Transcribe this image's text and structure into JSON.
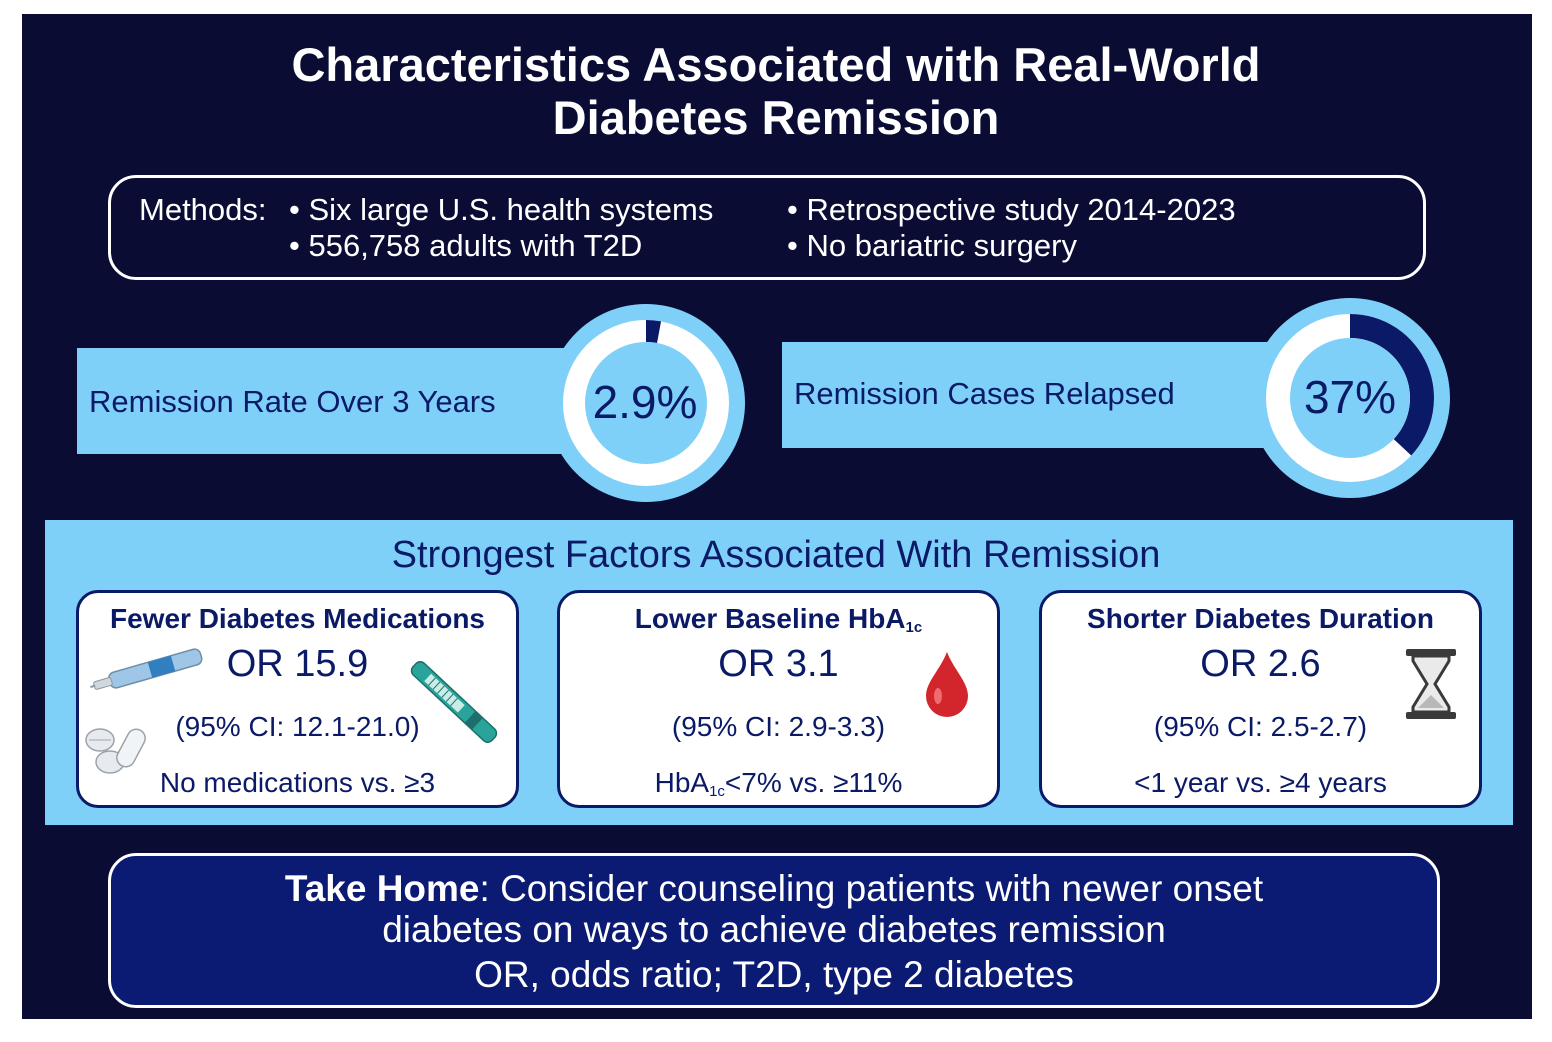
{
  "title": {
    "line1": "Characteristics Associated with Real-World",
    "line2": "Diabetes Remission"
  },
  "methods": {
    "label": "Methods:",
    "bullets": [
      "• Six large U.S. health systems",
      "• 556,758 adults with T2D",
      "• Retrospective study 2014-2023",
      "• No bariatric surgery"
    ]
  },
  "stats": [
    {
      "label": "Remission Rate Over 3 Years",
      "value": "2.9%",
      "fraction": 0.029
    },
    {
      "label": "Remission Cases Relapsed",
      "value": "37%",
      "fraction": 0.37
    }
  ],
  "factors": {
    "heading": "Strongest Factors Associated With Remission",
    "cards": [
      {
        "title": "Fewer Diabetes Medications",
        "or": "OR 15.9",
        "ci": "(95% CI: 12.1-21.0)",
        "comparison": "No medications vs. ≥3"
      },
      {
        "title_pre": "Lower Baseline HbA",
        "title_sub": "1c",
        "or": "OR 3.1",
        "ci": "(95% CI: 2.9-3.3)",
        "comparison_pre": "HbA",
        "comparison_sub": "1c",
        "comparison_post": "<7% vs. ≥11%"
      },
      {
        "title": "Shorter Diabetes Duration",
        "or": "OR 2.6",
        "ci": "(95% CI: 2.5-2.7)",
        "comparison": "<1 year vs. ≥4 years"
      }
    ]
  },
  "takehome": {
    "bold": "Take Home",
    "line1_rest": ": Consider counseling patients with newer onset",
    "line2": "diabetes on ways to achieve diabetes remission",
    "line3": "OR, odds ratio; T2D, type 2 diabetes"
  },
  "icons": [
    "insulin-pen-icon",
    "pills-icon",
    "teal-insulin-pen-icon",
    "blood-drop-icon",
    "hourglass-icon"
  ],
  "colors": {
    "background": "#0a0c33",
    "light_blue": "#7fd0f8",
    "navy": "#0b1a66",
    "drop_red": "#d3262c"
  }
}
